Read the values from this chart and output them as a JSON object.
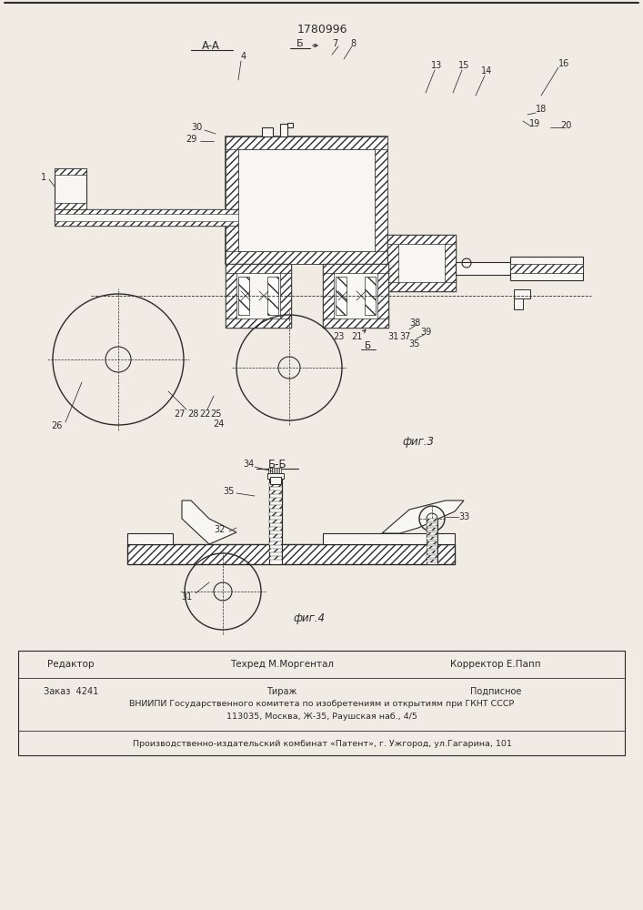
{
  "patent_number": "1780996",
  "bg_color": "#f0ece4",
  "white": "#f8f6f2",
  "line_color": "#2a2a2a",
  "fig3_label": "фиг.3",
  "fig4_label": "фиг.4",
  "section_aa": "A-A",
  "section_bb": "Б-Б",
  "section_b": "Б",
  "footer_r": "Редактор",
  "footer_t": "Техред М.Моргентал",
  "footer_k": "Корректор Е.Папп",
  "footer_z": "Заказ  4241",
  "footer_ti": "Тираж",
  "footer_p": "Подписное",
  "footer_vn": "ВНИИПИ Государственного комитета по изобретениям и открытиям при ГКНТ СССР",
  "footer_addr": "113035, Москва, Ж-35, Раушская наб., 4/5",
  "footer_prod": "Производственно-издательский комбинат «Патент», г. Ужгород, ул.Гагарина, 101",
  "lfs": 7.0,
  "tfs": 9.0,
  "ffs": 8.5
}
